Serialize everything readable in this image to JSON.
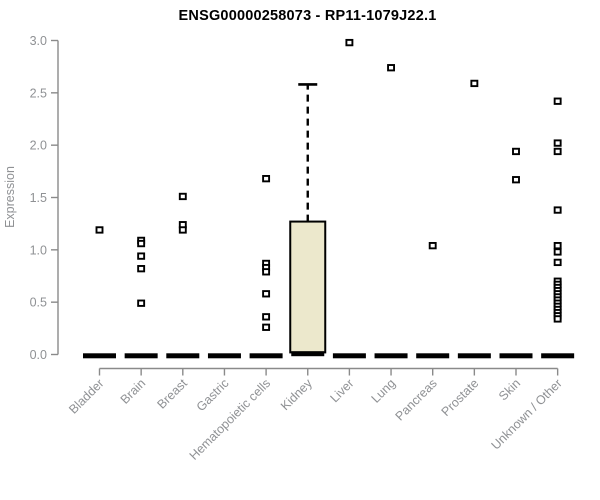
{
  "chart_data": {
    "type": "box",
    "title": "ENSG00000258073 - RP11-1079J22.1",
    "ylabel": "Expression",
    "xlabel": "",
    "ylim": [
      0.0,
      3.0
    ],
    "yticks": [
      0.0,
      0.5,
      1.0,
      1.5,
      2.0,
      2.5,
      3.0
    ],
    "grid": false,
    "legend": "none",
    "categories": [
      "Bladder",
      "Brain",
      "Breast",
      "Gastric",
      "Hematopoietic cells",
      "Kidney",
      "Liver",
      "Lung",
      "Pancreas",
      "Prostate",
      "Skin",
      "Unknown / Other"
    ],
    "boxes": [
      {
        "category": "Bladder",
        "median": 0,
        "q1": 0,
        "q3": 0,
        "whisker_low": 0,
        "whisker_high": 0,
        "outliers": [
          1.19
        ]
      },
      {
        "category": "Brain",
        "median": 0,
        "q1": 0,
        "q3": 0,
        "whisker_low": 0,
        "whisker_high": 0,
        "outliers": [
          1.09,
          1.06,
          0.94,
          0.82,
          0.49
        ]
      },
      {
        "category": "Breast",
        "median": 0,
        "q1": 0,
        "q3": 0,
        "whisker_low": 0,
        "whisker_high": 0,
        "outliers": [
          1.51,
          1.24,
          1.19
        ]
      },
      {
        "category": "Gastric",
        "median": 0,
        "q1": 0,
        "q3": 0,
        "whisker_low": 0,
        "whisker_high": 0,
        "outliers": []
      },
      {
        "category": "Hematopoietic cells",
        "median": 0,
        "q1": 0,
        "q3": 0,
        "whisker_low": 0,
        "whisker_high": 0,
        "outliers": [
          1.68,
          0.87,
          0.83,
          0.79,
          0.58,
          0.36,
          0.26
        ]
      },
      {
        "category": "Kidney",
        "median": 0.02,
        "q1": 0.02,
        "q3": 1.27,
        "whisker_low": 0.02,
        "whisker_high": 2.58,
        "outliers": []
      },
      {
        "category": "Liver",
        "median": 0,
        "q1": 0,
        "q3": 0,
        "whisker_low": 0,
        "whisker_high": 0,
        "outliers": [
          2.98
        ]
      },
      {
        "category": "Lung",
        "median": 0,
        "q1": 0,
        "q3": 0,
        "whisker_low": 0,
        "whisker_high": 0,
        "outliers": [
          2.74
        ]
      },
      {
        "category": "Pancreas",
        "median": 0,
        "q1": 0,
        "q3": 0,
        "whisker_low": 0,
        "whisker_high": 0,
        "outliers": [
          1.04
        ]
      },
      {
        "category": "Prostate",
        "median": 0,
        "q1": 0,
        "q3": 0,
        "whisker_low": 0,
        "whisker_high": 0,
        "outliers": [
          2.59
        ]
      },
      {
        "category": "Skin",
        "median": 0,
        "q1": 0,
        "q3": 0,
        "whisker_low": 0,
        "whisker_high": 0,
        "outliers": [
          1.94,
          1.67
        ]
      },
      {
        "category": "Unknown / Other",
        "median": 0,
        "q1": 0,
        "q3": 0,
        "whisker_low": 0,
        "whisker_high": 0,
        "outliers": [
          2.42,
          2.02,
          1.94,
          1.38,
          1.04,
          0.98,
          0.88,
          0.7,
          0.67,
          0.64,
          0.61,
          0.58,
          0.55,
          0.52,
          0.49,
          0.46,
          0.43,
          0.4,
          0.37,
          0.34
        ]
      }
    ],
    "colors": {
      "box_fill": "#ece8cc",
      "box_border": "#000000",
      "median": "#000000",
      "outlier": "#000000",
      "outlier_fill": "#ffffff",
      "whisker": "#000000",
      "axis": "#8a8a8a",
      "tick_label": "#8f9194",
      "title": "#000000",
      "background": "#ffffff"
    }
  }
}
